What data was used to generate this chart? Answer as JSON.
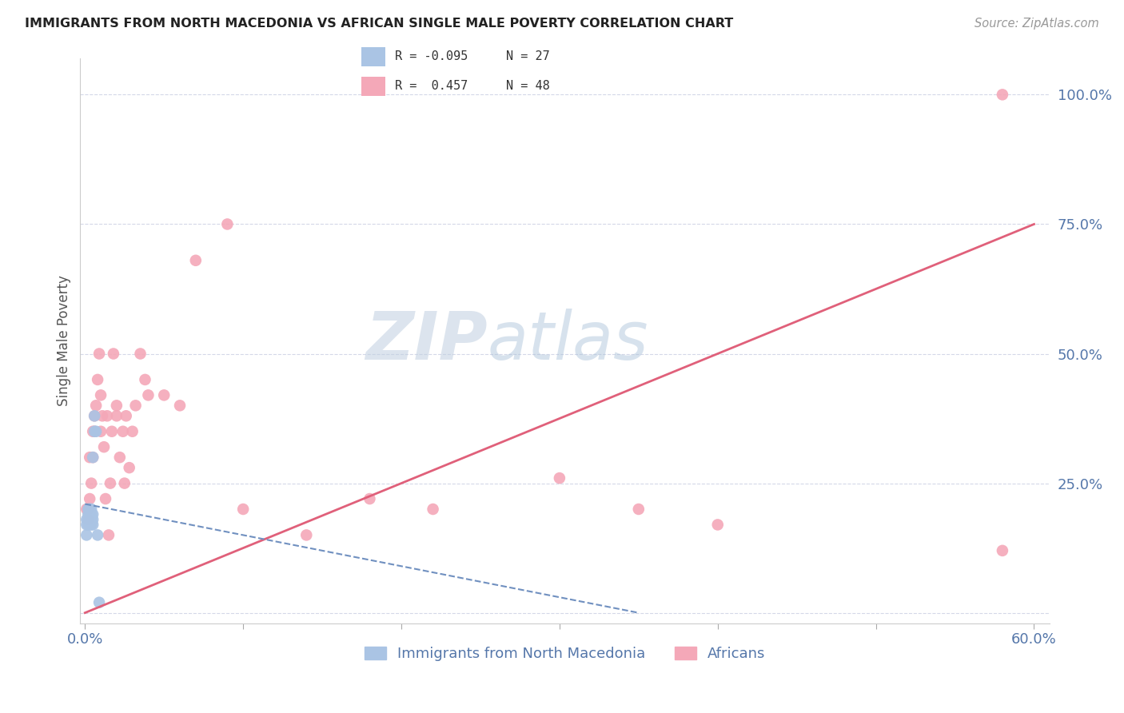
{
  "title": "IMMIGRANTS FROM NORTH MACEDONIA VS AFRICAN SINGLE MALE POVERTY CORRELATION CHART",
  "source": "Source: ZipAtlas.com",
  "ylabel": "Single Male Poverty",
  "xlim": [
    -0.003,
    0.61
  ],
  "ylim": [
    -0.02,
    1.07
  ],
  "yticks": [
    0.0,
    0.25,
    0.5,
    0.75,
    1.0
  ],
  "ytick_labels": [
    "",
    "25.0%",
    "50.0%",
    "75.0%",
    "100.0%"
  ],
  "xticks": [
    0.0,
    0.1,
    0.2,
    0.3,
    0.4,
    0.5,
    0.6
  ],
  "xtick_labels": [
    "0.0%",
    "",
    "",
    "",
    "",
    "",
    "60.0%"
  ],
  "blue_color": "#aac4e4",
  "pink_color": "#f4a8b8",
  "blue_line_color": "#7090c0",
  "pink_line_color": "#e0607a",
  "tick_color": "#5577aa",
  "grid_color": "#d4d8e8",
  "watermark_zip": "ZIP",
  "watermark_atlas": "atlas",
  "blue_x": [
    0.001,
    0.001,
    0.001,
    0.002,
    0.002,
    0.002,
    0.002,
    0.002,
    0.003,
    0.003,
    0.003,
    0.003,
    0.003,
    0.003,
    0.004,
    0.004,
    0.004,
    0.004,
    0.005,
    0.005,
    0.005,
    0.005,
    0.006,
    0.006,
    0.007,
    0.008,
    0.009
  ],
  "blue_y": [
    0.15,
    0.17,
    0.18,
    0.17,
    0.18,
    0.18,
    0.19,
    0.2,
    0.17,
    0.18,
    0.19,
    0.19,
    0.2,
    0.2,
    0.17,
    0.18,
    0.19,
    0.2,
    0.17,
    0.18,
    0.19,
    0.3,
    0.35,
    0.38,
    0.35,
    0.15,
    0.02
  ],
  "pink_x": [
    0.001,
    0.002,
    0.002,
    0.003,
    0.003,
    0.004,
    0.005,
    0.005,
    0.006,
    0.006,
    0.007,
    0.008,
    0.009,
    0.01,
    0.01,
    0.011,
    0.012,
    0.013,
    0.014,
    0.015,
    0.016,
    0.017,
    0.018,
    0.02,
    0.02,
    0.022,
    0.024,
    0.025,
    0.026,
    0.028,
    0.03,
    0.032,
    0.035,
    0.038,
    0.04,
    0.05,
    0.06,
    0.07,
    0.09,
    0.1,
    0.14,
    0.18,
    0.22,
    0.3,
    0.35,
    0.4,
    0.58,
    0.58
  ],
  "pink_y": [
    0.2,
    0.18,
    0.2,
    0.22,
    0.3,
    0.25,
    0.3,
    0.35,
    0.35,
    0.38,
    0.4,
    0.45,
    0.5,
    0.42,
    0.35,
    0.38,
    0.32,
    0.22,
    0.38,
    0.15,
    0.25,
    0.35,
    0.5,
    0.38,
    0.4,
    0.3,
    0.35,
    0.25,
    0.38,
    0.28,
    0.35,
    0.4,
    0.5,
    0.45,
    0.42,
    0.42,
    0.4,
    0.68,
    0.75,
    0.2,
    0.15,
    0.22,
    0.2,
    0.26,
    0.2,
    0.17,
    1.0,
    0.12
  ],
  "pink_line_x0": 0.0,
  "pink_line_y0": 0.0,
  "pink_line_x1": 0.6,
  "pink_line_y1": 0.75,
  "blue_line_x0": 0.0,
  "blue_line_y0": 0.21,
  "blue_line_x1": 0.35,
  "blue_line_y1": 0.0
}
